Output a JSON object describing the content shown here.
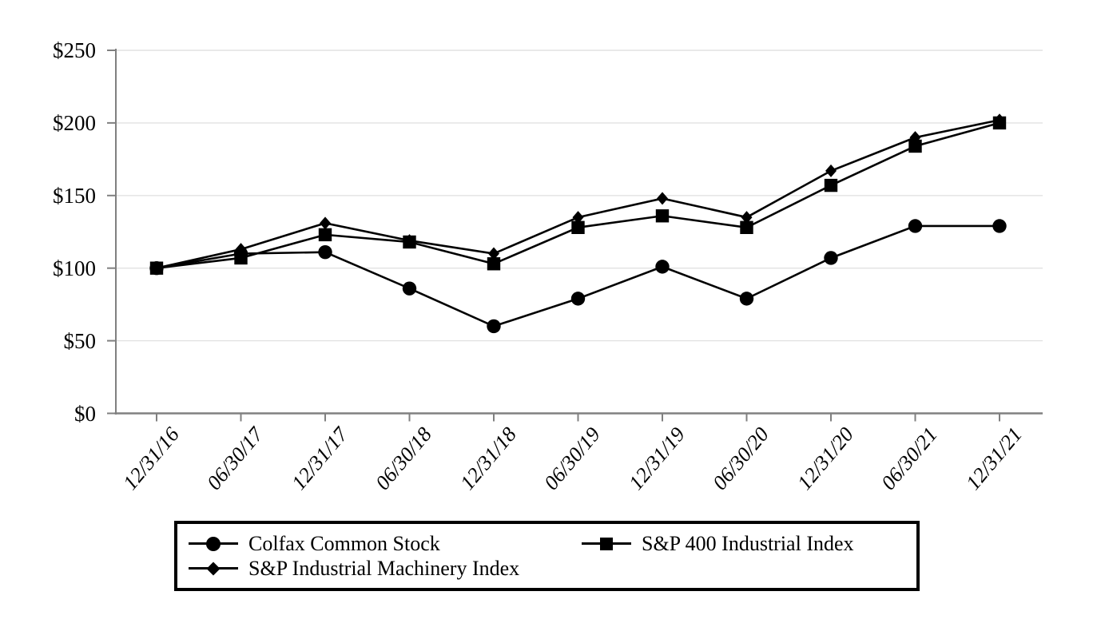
{
  "chart_data": {
    "type": "line",
    "title": "",
    "x_labels": [
      "12/31/16",
      "06/30/17",
      "12/31/17",
      "06/30/18",
      "12/31/18",
      "06/30/19",
      "12/31/19",
      "06/30/20",
      "12/31/20",
      "06/30/21",
      "12/31/21"
    ],
    "y_axis": {
      "min": 0,
      "max": 250,
      "step": 50,
      "tick_values": [
        0,
        50,
        100,
        150,
        200,
        250
      ],
      "tick_labels": [
        "$0",
        "$50",
        "$100",
        "$150",
        "$200",
        "$250"
      ]
    },
    "grid": true,
    "legend_position": "bottom",
    "series": [
      {
        "name": "Colfax Common Stock",
        "marker": "circle",
        "values": [
          100,
          110,
          111,
          86,
          60,
          79,
          101,
          79,
          107,
          129,
          129
        ]
      },
      {
        "name": "S&P 400 Industrial Index",
        "marker": "square",
        "values": [
          100,
          107,
          123,
          118,
          103,
          128,
          136,
          128,
          157,
          184,
          200
        ]
      },
      {
        "name": "S&P Industrial Machinery Index",
        "marker": "diamond",
        "values": [
          100,
          113,
          131,
          119,
          110,
          135,
          148,
          135,
          167,
          190,
          202
        ]
      }
    ],
    "colors": {
      "series_line": "#000000",
      "marker_fill": "#000000",
      "axis": "#808080",
      "gridline": "#e2e2e2",
      "background": "#ffffff",
      "legend_border": "#000000",
      "text": "#000000"
    }
  }
}
